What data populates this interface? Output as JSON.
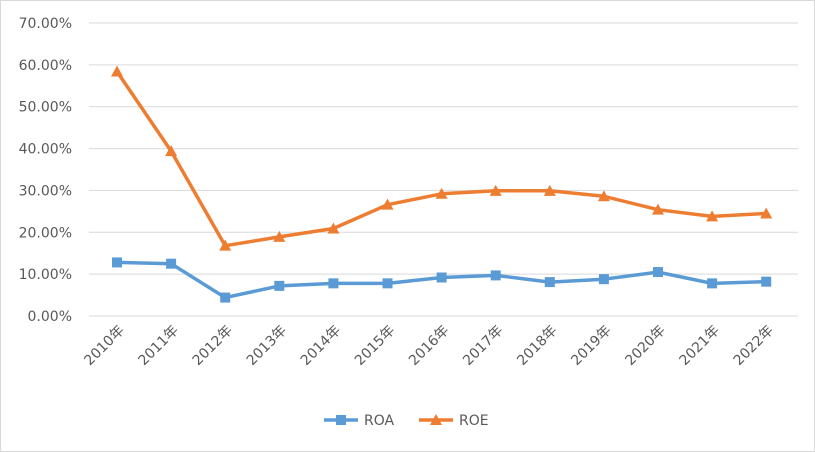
{
  "chart_data": {
    "type": "line",
    "title": "",
    "xlabel": "",
    "ylabel": "",
    "categories": [
      "2010年",
      "2011年",
      "2012年",
      "2013年",
      "2014年",
      "2015年",
      "2016年",
      "2017年",
      "2018年",
      "2019年",
      "2020年",
      "2021年",
      "2022年"
    ],
    "series": [
      {
        "name": "ROA",
        "color": "#5b9bd5",
        "marker": "square",
        "values": [
          0.128,
          0.125,
          0.044,
          0.072,
          0.078,
          0.078,
          0.092,
          0.097,
          0.081,
          0.088,
          0.105,
          0.078,
          0.082
        ]
      },
      {
        "name": "ROE",
        "color": "#ed7d31",
        "marker": "triangle",
        "values": [
          0.584,
          0.394,
          0.168,
          0.189,
          0.209,
          0.266,
          0.292,
          0.299,
          0.299,
          0.286,
          0.254,
          0.238,
          0.245
        ]
      }
    ],
    "ylim": [
      0,
      0.7
    ],
    "yticks": [
      0,
      0.1,
      0.2,
      0.3,
      0.4,
      0.5,
      0.6,
      0.7
    ],
    "ytick_labels": [
      "0.00%",
      "10.00%",
      "20.00%",
      "30.00%",
      "40.00%",
      "50.00%",
      "60.00%",
      "70.00%"
    ],
    "grid": true,
    "legend_position": "bottom",
    "gridline_color": "#d9d9d9",
    "text_color": "#595959"
  }
}
